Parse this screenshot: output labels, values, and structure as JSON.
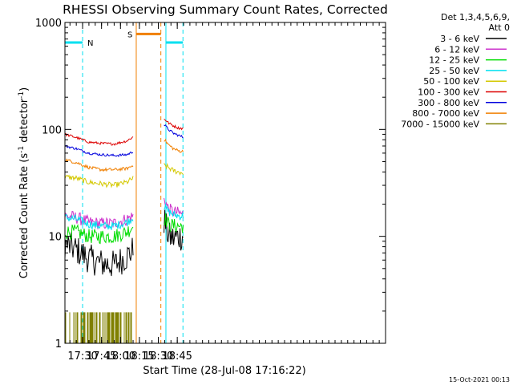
{
  "chart_data": {
    "type": "line",
    "title": "RHESSI Observing Summary Count Rates, Corrected",
    "xlabel": "Start Time (28-Jul-08 17:16:22)",
    "ylabel": "Corrected Count Rate (s⁻¹ detector⁻¹)",
    "ylabel_parts": {
      "base": "Corrected Count Rate (s",
      "sup1": "-1",
      "mid": " detector",
      "sup2": "-1",
      "end": ")"
    },
    "yscale": "log",
    "ylim": [
      1,
      1000
    ],
    "xlim": [
      1036,
      1290
    ],
    "x_unit": "minutes since 00:00 UT, 28-Jul-08",
    "xticks": [
      {
        "value": 1050,
        "label": "17:30"
      },
      {
        "value": 1065,
        "label": "17:45"
      },
      {
        "value": 1080,
        "label": "18:00"
      },
      {
        "value": 1095,
        "label": "18:15"
      },
      {
        "value": 1110,
        "label": "18:30"
      },
      {
        "value": 1125,
        "label": "18:45"
      }
    ],
    "yticks": [
      {
        "value": 1,
        "label": "1"
      },
      {
        "value": 10,
        "label": "10"
      },
      {
        "value": 100,
        "label": "100"
      },
      {
        "value": 1000,
        "label": "1000"
      }
    ],
    "legend": {
      "placement": "right",
      "header": [
        "Det 1,3,4,5,6,9,",
        "Att 0"
      ]
    },
    "segments": [
      [
        1036,
        1090.5
      ],
      [
        1114.5,
        1130
      ]
    ],
    "series": [
      {
        "name": "3 - 6 keV",
        "color": "#000000",
        "values1": [
          [
            1036,
            8.5
          ],
          [
            1045,
            7.5
          ],
          [
            1055,
            6.2
          ],
          [
            1065,
            5.6
          ],
          [
            1075,
            5.4
          ],
          [
            1085,
            6.5
          ],
          [
            1090,
            7.5
          ]
        ],
        "values2": [
          [
            1115,
            14
          ],
          [
            1118,
            10
          ],
          [
            1122,
            9.5
          ],
          [
            1126,
            10
          ],
          [
            1130,
            10
          ]
        ],
        "noise": 0.14
      },
      {
        "name": "6 - 12 keV",
        "color": "#cc33cc",
        "values1": [
          [
            1036,
            15.5
          ],
          [
            1045,
            15
          ],
          [
            1055,
            13.5
          ],
          [
            1065,
            13.2
          ],
          [
            1075,
            13.2
          ],
          [
            1085,
            14.5
          ],
          [
            1090,
            15.5
          ]
        ],
        "values2": [
          [
            1115,
            22
          ],
          [
            1118,
            18
          ],
          [
            1122,
            17
          ],
          [
            1126,
            16.5
          ],
          [
            1130,
            16
          ]
        ],
        "noise": 0.06
      },
      {
        "name": "12 - 25 keV",
        "color": "#00dd00",
        "values1": [
          [
            1036,
            11
          ],
          [
            1045,
            11
          ],
          [
            1055,
            10
          ],
          [
            1065,
            10
          ],
          [
            1075,
            10
          ],
          [
            1085,
            11
          ],
          [
            1090,
            12.5
          ]
        ],
        "values2": [
          [
            1115,
            15
          ],
          [
            1118,
            13
          ],
          [
            1122,
            12.5
          ],
          [
            1126,
            12.5
          ],
          [
            1130,
            12.5
          ]
        ],
        "noise": 0.07
      },
      {
        "name": "25 - 50 keV",
        "color": "#00e0f0",
        "values1": [
          [
            1036,
            15
          ],
          [
            1045,
            14.5
          ],
          [
            1055,
            13
          ],
          [
            1065,
            12.5
          ],
          [
            1075,
            12.5
          ],
          [
            1085,
            13.5
          ],
          [
            1090,
            15
          ]
        ],
        "values2": [
          [
            1115,
            19
          ],
          [
            1118,
            17
          ],
          [
            1122,
            16
          ],
          [
            1126,
            15.5
          ],
          [
            1130,
            15.5
          ]
        ],
        "noise": 0.04
      },
      {
        "name": "50 - 100 keV",
        "color": "#d4c800",
        "values1": [
          [
            1036,
            36
          ],
          [
            1045,
            35
          ],
          [
            1055,
            32
          ],
          [
            1065,
            31
          ],
          [
            1075,
            30
          ],
          [
            1085,
            32
          ],
          [
            1090,
            35
          ]
        ],
        "values2": [
          [
            1115,
            46
          ],
          [
            1118,
            44
          ],
          [
            1122,
            41
          ],
          [
            1126,
            40
          ],
          [
            1130,
            39
          ]
        ],
        "noise": 0.025
      },
      {
        "name": "100 - 300 keV",
        "color": "#dd0000",
        "values1": [
          [
            1036,
            90
          ],
          [
            1045,
            84
          ],
          [
            1055,
            76
          ],
          [
            1065,
            74
          ],
          [
            1075,
            73
          ],
          [
            1085,
            78
          ],
          [
            1090,
            85
          ]
        ],
        "values2": [
          [
            1115,
            125
          ],
          [
            1118,
            115
          ],
          [
            1122,
            108
          ],
          [
            1126,
            103
          ],
          [
            1130,
            102
          ]
        ],
        "noise": 0.012
      },
      {
        "name": "300 - 800 keV",
        "color": "#0000dd",
        "values1": [
          [
            1036,
            70
          ],
          [
            1045,
            66
          ],
          [
            1055,
            60
          ],
          [
            1065,
            58
          ],
          [
            1075,
            57
          ],
          [
            1085,
            58
          ],
          [
            1090,
            62
          ]
        ],
        "values2": [
          [
            1115,
            110
          ],
          [
            1118,
            100
          ],
          [
            1122,
            92
          ],
          [
            1126,
            88
          ],
          [
            1130,
            84
          ]
        ],
        "noise": 0.012
      },
      {
        "name": "800 - 7000 keV",
        "color": "#f07f00",
        "values1": [
          [
            1036,
            52
          ],
          [
            1045,
            49
          ],
          [
            1055,
            44
          ],
          [
            1065,
            42
          ],
          [
            1075,
            42
          ],
          [
            1085,
            43
          ],
          [
            1090,
            46
          ]
        ],
        "values2": [
          [
            1115,
            80
          ],
          [
            1118,
            72
          ],
          [
            1122,
            66
          ],
          [
            1126,
            63
          ],
          [
            1130,
            62
          ]
        ],
        "noise": 0.015
      },
      {
        "name": "7000 - 15000 keV",
        "color": "#808000",
        "values1": [
          [
            1036,
            1.5
          ],
          [
            1090,
            1.5
          ]
        ],
        "values2": [],
        "noise": 0
      }
    ],
    "annotations": [
      {
        "label": "N",
        "color": "#00e0f0",
        "flag_x": [
          1036,
          1050
        ],
        "flag_y": 650,
        "span": [
          1036,
          1050
        ]
      },
      {
        "label": "S",
        "color": "#f07f00",
        "flag_x": [
          1092.5,
          1112
        ],
        "flag_y": 780,
        "span": [
          1092.5,
          1112
        ]
      },
      {
        "label": "",
        "color": "#00e0f0",
        "flag_x": [
          1116,
          1129.5
        ],
        "flag_y": 650,
        "span": [
          1116,
          1129.5
        ]
      }
    ]
  },
  "footer": {
    "timestamp": "15-Oct-2021 00:13"
  }
}
